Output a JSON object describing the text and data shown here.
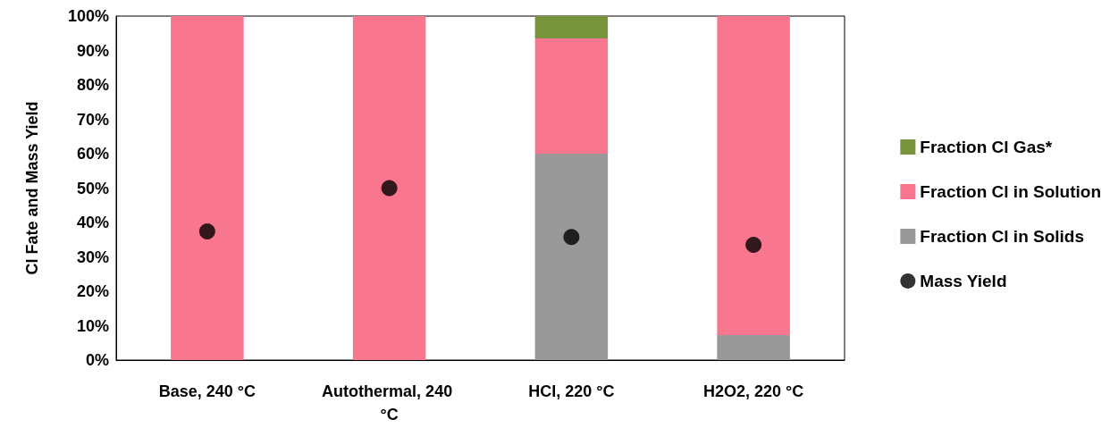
{
  "chart_data": {
    "type": "bar",
    "stacked": true,
    "ylabel": "Cl Fate and Mass Yield",
    "categories": [
      "Base, 240 °C",
      "Autothermal, 240 °C",
      "HCl, 220 °C",
      "H2O2, 220 °C"
    ],
    "series": [
      {
        "name": "Fraction Cl in Solids",
        "color": "#999999",
        "values": [
          0,
          0,
          60,
          7.3
        ]
      },
      {
        "name": "Fraction Cl in Solution",
        "color": "#f9768f",
        "values": [
          100,
          100,
          33.5,
          92.7
        ]
      },
      {
        "name": "Fraction Cl Gas*",
        "color": "#77933c",
        "values": [
          0,
          0,
          6.5,
          0
        ]
      },
      {
        "name": "Mass Yield",
        "type": "scatter",
        "marker": "circle",
        "color": "#000000",
        "x": [
          "Base, 240 °C",
          "Autothermal, 240 °C",
          "HCl, 220 °C",
          "H2O2, 220 °C"
        ],
        "values": [
          37.4,
          50,
          35.8,
          33.5
        ]
      }
    ],
    "ylim": [
      0,
      100
    ],
    "yticks": [
      {
        "value": 0,
        "label": "0%"
      },
      {
        "value": 10,
        "label": "10%"
      },
      {
        "value": 20,
        "label": "20%"
      },
      {
        "value": 30,
        "label": "30%"
      },
      {
        "value": 40,
        "label": "40%"
      },
      {
        "value": 50,
        "label": "50%"
      },
      {
        "value": 60,
        "label": "60%"
      },
      {
        "value": 70,
        "label": "70%"
      },
      {
        "value": 80,
        "label": "80%"
      },
      {
        "value": 90,
        "label": "90%"
      },
      {
        "value": 100,
        "label": "100%"
      }
    ],
    "grid": false,
    "legend": "right"
  }
}
